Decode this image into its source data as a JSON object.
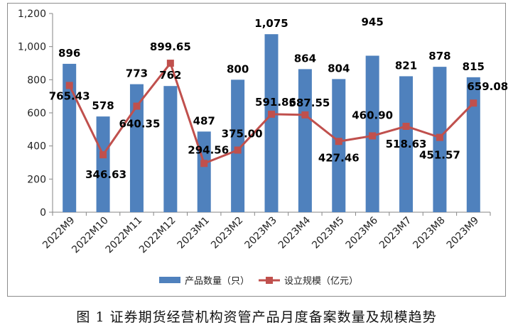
{
  "chart_data": {
    "type": "bar+line",
    "categories": [
      "2022M9",
      "2022M10",
      "2022M11",
      "2022M12",
      "2023M1",
      "2023M2",
      "2023M3",
      "2023M4",
      "2023M5",
      "2023M6",
      "2023M7",
      "2023M8",
      "2023M9"
    ],
    "series": [
      {
        "name": "产品数量（只）",
        "type": "bar",
        "color": "#4F81BD",
        "values": [
          896,
          578,
          773,
          762,
          487,
          800,
          1075,
          864,
          804,
          945,
          821,
          878,
          815
        ],
        "labels": [
          "896",
          "578",
          "773",
          "762",
          "487",
          "800",
          "1,075",
          "864",
          "804",
          "945",
          "821",
          "878",
          "815"
        ]
      },
      {
        "name": "设立规模（亿元）",
        "type": "line",
        "color": "#C0504D",
        "values": [
          765.43,
          346.63,
          640.35,
          899.65,
          294.56,
          375.0,
          591.86,
          587.55,
          427.46,
          460.9,
          518.63,
          451.57,
          659.08
        ],
        "labels": [
          "765.43",
          "346.63",
          "640.35",
          "899.65",
          "294.56",
          "375.00",
          "591.86",
          "587.55",
          "427.46",
          "460.90",
          "518.63",
          "451.57",
          "659.08"
        ]
      }
    ],
    "y_ticks": [
      "0",
      "200",
      "400",
      "600",
      "800",
      "1,000",
      "1,200"
    ],
    "ylim": [
      0,
      1200
    ],
    "grid": false,
    "legend_position": "bottom"
  },
  "caption": "图 1   证券期货经营机构资管产品月度备案数量及规模趋势"
}
